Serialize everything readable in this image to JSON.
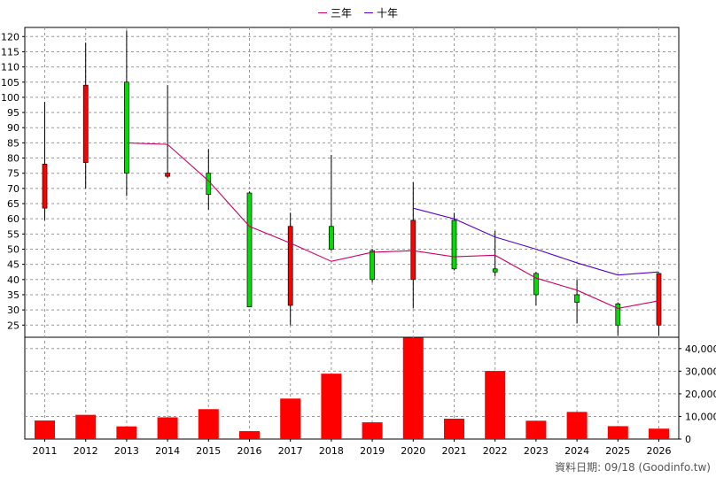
{
  "legend": {
    "series3_label": "三年",
    "series10_label": "十年",
    "series3_color": "#cc0066",
    "series10_color": "#5500cc"
  },
  "footer": {
    "note": "資料日期: 09/18  (Goodinfo.tw)"
  },
  "chart_data": [
    {
      "type": "candlestick",
      "title": "",
      "x": [
        "2011",
        "2012",
        "2013",
        "2014",
        "2015",
        "2016",
        "2017",
        "2018",
        "2019",
        "2020",
        "2021",
        "2022",
        "2023",
        "2024",
        "2025",
        "2026"
      ],
      "ylim": [
        21,
        123
      ],
      "yticks": [
        25,
        30,
        35,
        40,
        45,
        50,
        55,
        60,
        65,
        70,
        75,
        80,
        85,
        90,
        95,
        100,
        105,
        110,
        115,
        120
      ],
      "grid": true,
      "up_color": "#ff0000",
      "down_color": "#00dd00",
      "candles": [
        {
          "x": "2011",
          "open": 63.5,
          "high": 98.5,
          "low": 59.5,
          "close": 78
        },
        {
          "x": "2012",
          "open": 78.5,
          "high": 118,
          "low": 70,
          "close": 104
        },
        {
          "x": "2013",
          "open": 105,
          "high": 122,
          "low": 67.5,
          "close": 75
        },
        {
          "x": "2014",
          "open": 74,
          "high": 104,
          "low": 73.5,
          "close": 75
        },
        {
          "x": "2015",
          "open": 75,
          "high": 83,
          "low": 63,
          "close": 68
        },
        {
          "x": "2016",
          "open": 68.5,
          "high": 69,
          "low": 31,
          "close": 31
        },
        {
          "x": "2017",
          "open": 31.5,
          "high": 62,
          "low": 25,
          "close": 57.5
        },
        {
          "x": "2018",
          "open": 57.5,
          "high": 81,
          "low": 49.5,
          "close": 50
        },
        {
          "x": "2019",
          "open": 49.5,
          "high": 50,
          "low": 39,
          "close": 40
        },
        {
          "x": "2020",
          "open": 40,
          "high": 72,
          "low": 30.5,
          "close": 59.5
        },
        {
          "x": "2021",
          "open": 59.5,
          "high": 62,
          "low": 43,
          "close": 43.5
        },
        {
          "x": "2022",
          "open": 43.5,
          "high": 56,
          "low": 41,
          "close": 42.5
        },
        {
          "x": "2023",
          "open": 42,
          "high": 42.5,
          "low": 31.5,
          "close": 35
        },
        {
          "x": "2024",
          "open": 35,
          "high": 40,
          "low": 25.5,
          "close": 32.5
        },
        {
          "x": "2025",
          "open": 32,
          "high": 32.5,
          "low": 21.5,
          "close": 25
        },
        {
          "x": "2026",
          "open": 25,
          "high": 42,
          "low": 21.5,
          "close": 42
        }
      ],
      "series": [
        {
          "name": "三年",
          "x": [
            "2013",
            "2014",
            "2015",
            "2016",
            "2017",
            "2018",
            "2019",
            "2020",
            "2021",
            "2022",
            "2023",
            "2024",
            "2025",
            "2026"
          ],
          "values": [
            85,
            84.5,
            72.5,
            57.5,
            52,
            46,
            49,
            49.5,
            47.5,
            48,
            40.5,
            36.5,
            30.5,
            33
          ]
        },
        {
          "name": "十年",
          "x": [
            "2020",
            "2021",
            "2022",
            "2023",
            "2024",
            "2025",
            "2026"
          ],
          "values": [
            63.5,
            60,
            54,
            50,
            45.5,
            41.5,
            42.5
          ]
        }
      ]
    },
    {
      "type": "bar",
      "title": "",
      "categories": [
        "2011",
        "2012",
        "2013",
        "2014",
        "2015",
        "2016",
        "2017",
        "2018",
        "2019",
        "2020",
        "2021",
        "2022",
        "2023",
        "2024",
        "2025",
        "2026"
      ],
      "values": [
        8200,
        10700,
        5600,
        9600,
        13200,
        3500,
        17900,
        28900,
        7400,
        44800,
        9000,
        30100,
        8100,
        12000,
        5700,
        4600
      ],
      "ylim": [
        0,
        45000
      ],
      "yticks": [
        0,
        10000,
        20000,
        30000,
        40000
      ],
      "ytick_labels": [
        "0",
        "10,000",
        "20,000",
        "30,000",
        "40,000"
      ],
      "bar_color": "#ff0000",
      "grid": true
    }
  ]
}
